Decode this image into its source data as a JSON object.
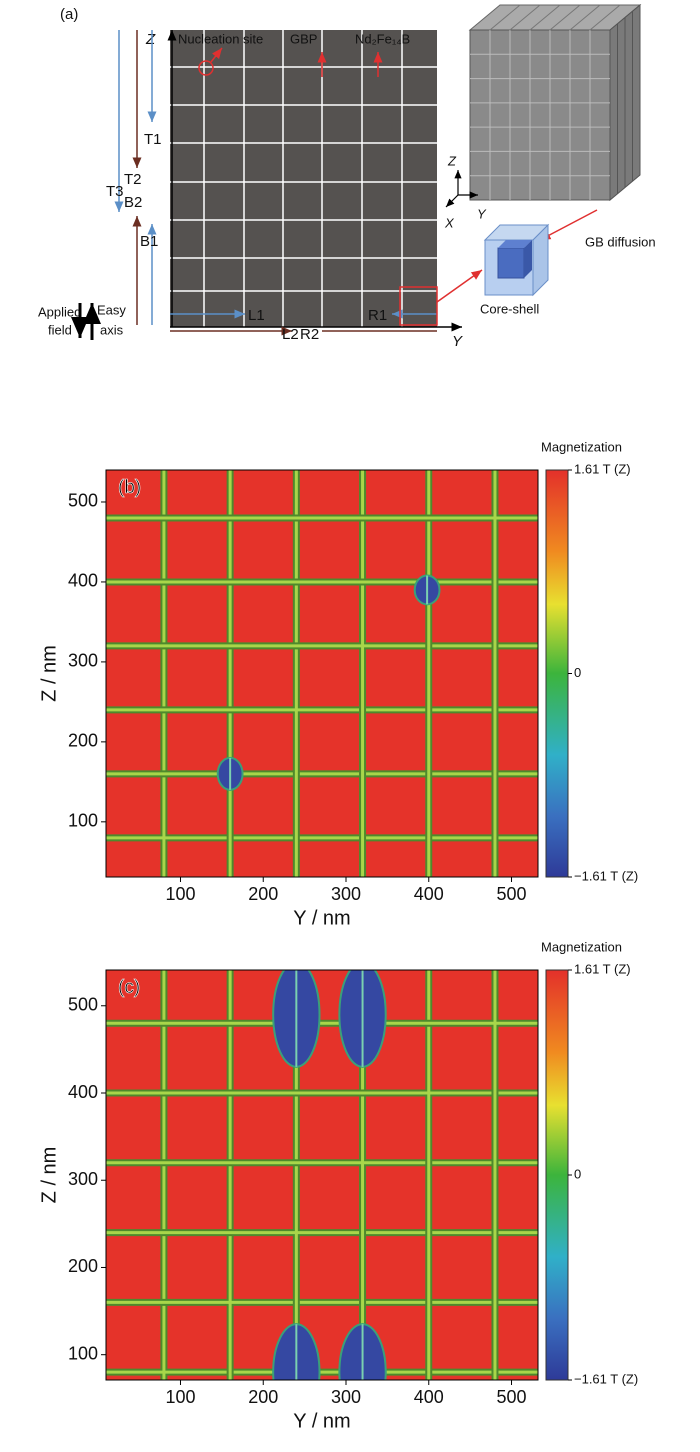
{
  "figure_a": {
    "panel": "(a)",
    "z_axis": "Z",
    "y_axis": "Y",
    "nucleation": "Nucleation site",
    "gbp": "GBP",
    "phase": "Nd₂Fe₁₄B",
    "t1": "T1",
    "t2": "T2",
    "t3": "T3",
    "b1": "B1",
    "b2": "B2",
    "l1": "L1",
    "l2": "L2",
    "r1": "R1",
    "r2": "R2",
    "applied_1": "Applied",
    "applied_2": "field",
    "easy_1": "Easy",
    "easy_2": "axis",
    "triad_x": "X",
    "triad_y": "Y",
    "triad_z": "Z",
    "gb_diffusion": "GB diffusion",
    "core_shell": "Core-shell"
  },
  "chart_data": [
    {
      "type": "heatmap",
      "panel": "(b)",
      "xlabel": "Y / nm",
      "ylabel": "Z / nm",
      "colorbar_title": "Magnetization",
      "xlim": [
        10,
        532
      ],
      "ylim": [
        31,
        540
      ],
      "xticks": [
        100,
        200,
        300,
        400,
        500
      ],
      "yticks": [
        100,
        200,
        300,
        400,
        500
      ],
      "clim": [
        -1.61,
        1.61
      ],
      "cticks": [
        {
          "value": 1.61,
          "label": "1.61 T (Z)"
        },
        0,
        {
          "value": -1.61,
          "label": "−1.61 T (Z)"
        }
      ],
      "grain_boundaries": [
        80,
        160,
        240,
        320,
        400,
        480
      ],
      "reversed_domains": [
        {
          "y": 160,
          "z": 160,
          "dy": 15,
          "dz": 20
        },
        {
          "y": 398,
          "z": 390,
          "dy": 15,
          "dz": 18
        }
      ]
    },
    {
      "type": "heatmap",
      "panel": "(c)",
      "xlabel": "Y / nm",
      "ylabel": "Z / nm",
      "colorbar_title": "Magnetization",
      "xlim": [
        10,
        532
      ],
      "ylim": [
        71,
        541
      ],
      "xticks": [
        100,
        200,
        300,
        400,
        500
      ],
      "yticks": [
        100,
        200,
        300,
        400,
        500
      ],
      "clim": [
        -1.61,
        1.61
      ],
      "cticks": [
        {
          "value": 1.61,
          "label": "1.61 T (Z)"
        },
        0,
        {
          "value": -1.61,
          "label": "−1.61 T (Z)"
        }
      ],
      "grain_boundaries": [
        80,
        160,
        240,
        320,
        400,
        480
      ],
      "reversed_domains": [
        {
          "y": 240,
          "z": 490,
          "dy": 28,
          "dz": 60
        },
        {
          "y": 320,
          "z": 490,
          "dy": 28,
          "dz": 60
        },
        {
          "y": 240,
          "z": 80,
          "dy": 28,
          "dz": 55
        },
        {
          "y": 320,
          "z": 80,
          "dy": 28,
          "dz": 55
        }
      ]
    }
  ]
}
